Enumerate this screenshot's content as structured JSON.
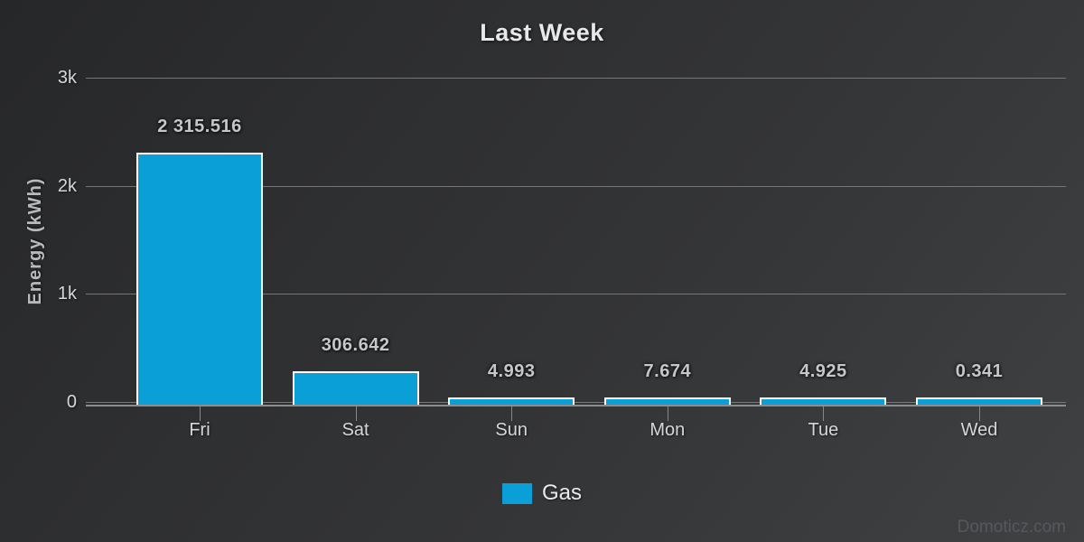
{
  "chart_data": {
    "type": "bar",
    "title": "Last Week",
    "ylabel": "Energy (kWh)",
    "xlabel": "",
    "categories": [
      "Fri",
      "Sat",
      "Sun",
      "Mon",
      "Tue",
      "Wed"
    ],
    "series": [
      {
        "name": "Gas",
        "color": "#0b9fd8",
        "values": [
          2315.516,
          306.642,
          4.993,
          7.674,
          4.925,
          0.341
        ],
        "value_labels": [
          "2 315.516",
          "306.642",
          "4.993",
          "7.674",
          "4.925",
          "0.341"
        ]
      }
    ],
    "yticks": [
      {
        "label": "3k",
        "value": 3000
      },
      {
        "label": "2k",
        "value": 2000
      },
      {
        "label": "1k",
        "value": 1000
      },
      {
        "label": "0",
        "value": 0
      }
    ],
    "ylim": [
      0,
      3000
    ],
    "grid": true,
    "legend_position": "bottom-center"
  },
  "watermark": "Domoticz.com",
  "colors": {
    "bar_fill": "#0b9fd8",
    "bar_border": "#ffffff",
    "gridline": "#74767b",
    "axis_line": "#8b8d90",
    "tick_mark": "#85878a",
    "tick_label": "#d6d7d8",
    "value_label": "#c6c7c8",
    "title": "#e8e8e8",
    "axis_title": "#b9babc",
    "legend_text": "#ebebeb",
    "watermark_text": "#56585c"
  }
}
